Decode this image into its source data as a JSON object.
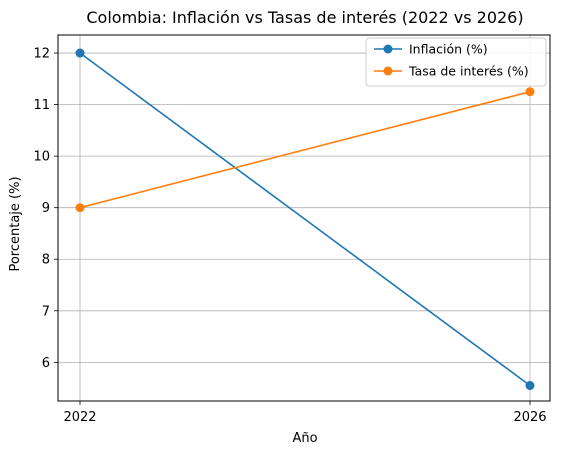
{
  "chart_data": {
    "type": "line",
    "title": "Colombia: Inflación vs Tasas de interés (2022 vs 2026)",
    "xlabel": "Año",
    "ylabel": "Porcentaje (%)",
    "x": [
      "2022",
      "2026"
    ],
    "ylim": [
      5.25,
      12.35
    ],
    "yticks": [
      6,
      7,
      8,
      9,
      10,
      11,
      12
    ],
    "grid": true,
    "legend_position": "top-right",
    "series": [
      {
        "name": "Inflación (%)",
        "values": [
          12.0,
          5.55
        ],
        "color": "#1f77b4",
        "marker": "circle"
      },
      {
        "name": "Tasa de interés (%)",
        "values": [
          9.0,
          11.25
        ],
        "color": "#ff7f0e",
        "marker": "circle"
      }
    ]
  }
}
